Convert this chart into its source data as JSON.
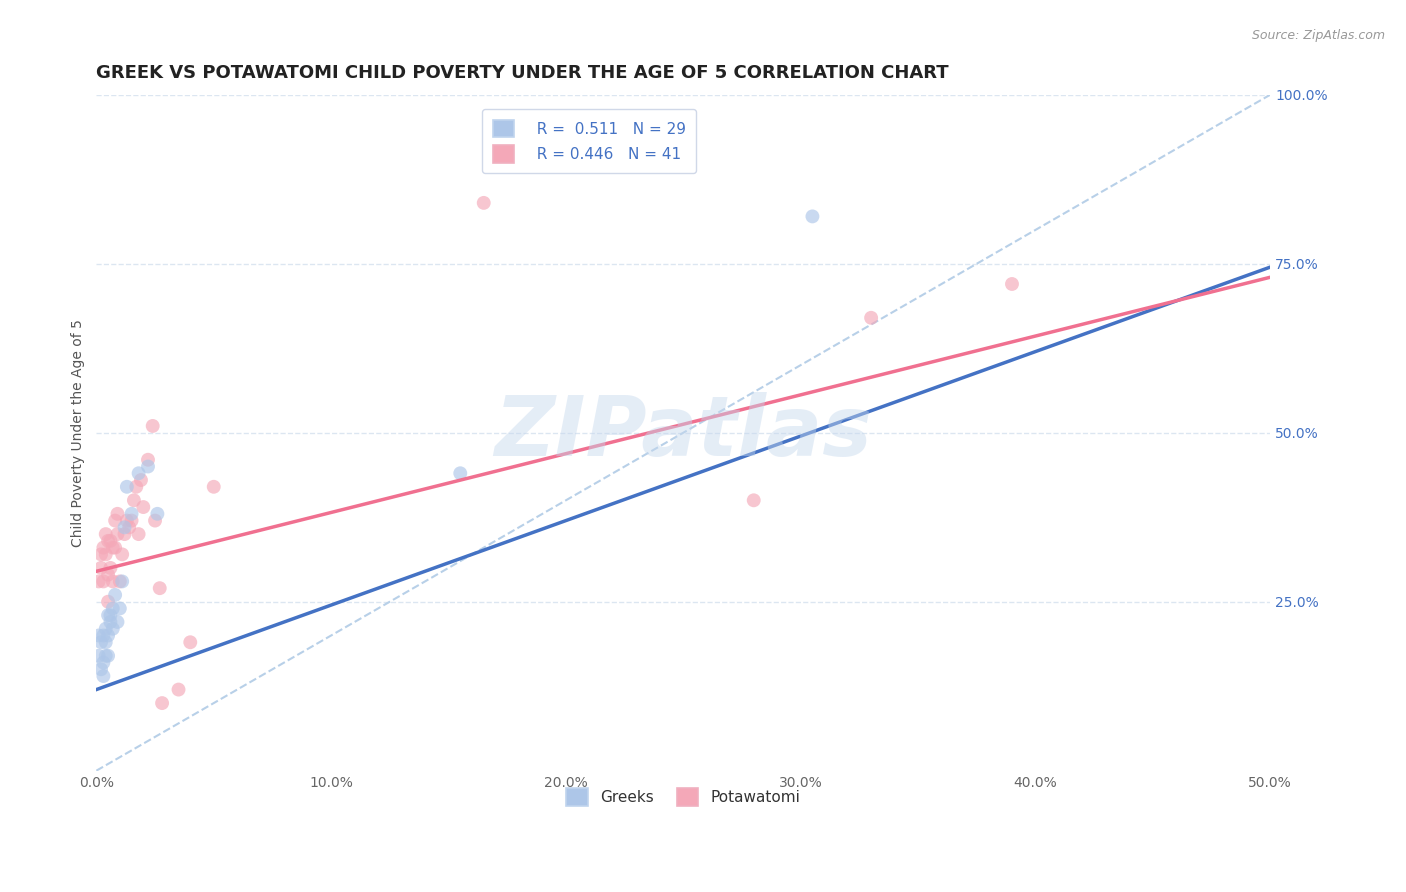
{
  "title": "GREEK VS POTAWATOMI CHILD POVERTY UNDER THE AGE OF 5 CORRELATION CHART",
  "source": "Source: ZipAtlas.com",
  "ylabel": "Child Poverty Under the Age of 5",
  "xlim": [
    0.0,
    0.5
  ],
  "ylim": [
    0.0,
    1.0
  ],
  "xtick_labels": [
    "0.0%",
    "10.0%",
    "20.0%",
    "30.0%",
    "40.0%",
    "50.0%"
  ],
  "xtick_vals": [
    0.0,
    0.1,
    0.2,
    0.3,
    0.4,
    0.5
  ],
  "ytick_labels": [
    "25.0%",
    "50.0%",
    "75.0%",
    "100.0%"
  ],
  "ytick_vals": [
    0.25,
    0.5,
    0.75,
    1.0
  ],
  "greek_color": "#adc6e8",
  "potawatomi_color": "#f4a8b8",
  "greek_line_color": "#4472c4",
  "potawatomi_line_color": "#f07090",
  "ref_line_color": "#b8d0e8",
  "R_greek": 0.511,
  "N_greek": 29,
  "R_potawatomi": 0.446,
  "N_potawatomi": 41,
  "legend_label_greek": "Greeks",
  "legend_label_potawatomi": "Potawatomi",
  "greek_line_x0": 0.0,
  "greek_line_y0": 0.12,
  "greek_line_x1": 0.5,
  "greek_line_y1": 0.745,
  "pota_line_x0": 0.0,
  "pota_line_y0": 0.295,
  "pota_line_x1": 0.5,
  "pota_line_y1": 0.73,
  "greek_x": [
    0.001,
    0.001,
    0.002,
    0.002,
    0.003,
    0.003,
    0.003,
    0.004,
    0.004,
    0.004,
    0.005,
    0.005,
    0.005,
    0.006,
    0.006,
    0.007,
    0.007,
    0.008,
    0.009,
    0.01,
    0.011,
    0.012,
    0.013,
    0.015,
    0.018,
    0.022,
    0.026,
    0.155,
    0.305
  ],
  "greek_y": [
    0.17,
    0.2,
    0.15,
    0.19,
    0.14,
    0.16,
    0.2,
    0.17,
    0.19,
    0.21,
    0.17,
    0.2,
    0.23,
    0.22,
    0.23,
    0.21,
    0.24,
    0.26,
    0.22,
    0.24,
    0.28,
    0.36,
    0.42,
    0.38,
    0.44,
    0.45,
    0.38,
    0.44,
    0.82
  ],
  "potawatomi_x": [
    0.001,
    0.002,
    0.002,
    0.003,
    0.003,
    0.004,
    0.004,
    0.005,
    0.005,
    0.005,
    0.006,
    0.006,
    0.007,
    0.007,
    0.008,
    0.008,
    0.009,
    0.009,
    0.01,
    0.011,
    0.012,
    0.013,
    0.014,
    0.015,
    0.016,
    0.017,
    0.018,
    0.019,
    0.02,
    0.022,
    0.024,
    0.025,
    0.027,
    0.028,
    0.035,
    0.04,
    0.165,
    0.28,
    0.33,
    0.39,
    0.05
  ],
  "potawatomi_y": [
    0.28,
    0.3,
    0.32,
    0.28,
    0.33,
    0.32,
    0.35,
    0.25,
    0.29,
    0.34,
    0.3,
    0.34,
    0.28,
    0.33,
    0.33,
    0.37,
    0.35,
    0.38,
    0.28,
    0.32,
    0.35,
    0.37,
    0.36,
    0.37,
    0.4,
    0.42,
    0.35,
    0.43,
    0.39,
    0.46,
    0.51,
    0.37,
    0.27,
    0.1,
    0.12,
    0.19,
    0.84,
    0.4,
    0.67,
    0.72,
    0.42
  ],
  "background_color": "#ffffff",
  "grid_color": "#dce6f1",
  "marker_size": 100,
  "alpha": 0.65,
  "title_fontsize": 13,
  "axis_label_fontsize": 10,
  "tick_fontsize": 10,
  "legend_fontsize": 11,
  "source_fontsize": 9,
  "watermark_text": "ZIPatlas",
  "watermark_color": "#c5d8ed",
  "watermark_alpha": 0.45,
  "watermark_fontsize": 60
}
